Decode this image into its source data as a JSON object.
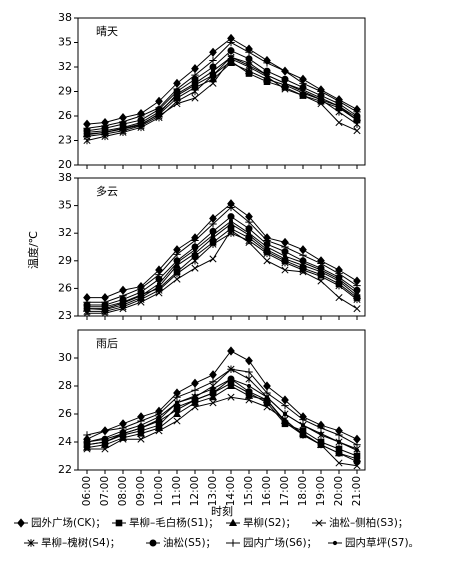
{
  "chart_data": [
    {
      "type": "line",
      "title": "晴天",
      "ylim": [
        20,
        38
      ],
      "yticks": [
        20,
        23,
        26,
        29,
        32,
        35,
        38
      ],
      "series": [
        {
          "name": "园外广场(CK)；",
          "color": "#000",
          "marker": "diamond",
          "values": [
            25,
            25.2,
            25.8,
            26.3,
            27.8,
            30,
            31.8,
            33.8,
            35.5,
            34.2,
            32.8,
            31.5,
            30.5,
            29.2,
            28,
            26.8
          ]
        },
        {
          "name": "旱柳–毛白杨(S1)；",
          "color": "#000",
          "marker": "square",
          "values": [
            24,
            24.2,
            24.6,
            25.2,
            26.5,
            28.5,
            29.8,
            31,
            32.7,
            31.2,
            30.2,
            29.5,
            28.5,
            27.8,
            27,
            25.5
          ]
        },
        {
          "name": "旱柳(S2)；",
          "color": "#000",
          "marker": "triangle",
          "values": [
            23.8,
            24,
            24.5,
            25,
            26.2,
            28.2,
            29.5,
            30.5,
            32.5,
            31.5,
            30.5,
            29.8,
            28.8,
            28,
            27.2,
            25.8
          ]
        },
        {
          "name": "油松–侧柏(S3)；",
          "color": "#000",
          "marker": "x",
          "values": [
            23.5,
            23.8,
            24.2,
            24.8,
            26,
            27.5,
            28.2,
            30,
            33,
            32,
            30.8,
            29.3,
            28.5,
            27.5,
            25.2,
            24.2
          ]
        },
        {
          "name": "旱柳–槐树(S4)；",
          "color": "#000",
          "marker": "asterisk",
          "values": [
            23,
            23.5,
            24,
            24.6,
            25.8,
            27.8,
            29,
            31,
            33.2,
            32.2,
            31,
            30,
            29,
            28,
            26.5,
            25
          ]
        },
        {
          "name": "油松(S5)；",
          "color": "#000",
          "marker": "circle",
          "values": [
            24.2,
            24.5,
            25,
            25.5,
            26.8,
            29,
            30.5,
            32,
            34,
            33,
            31.5,
            30.5,
            29.5,
            28.5,
            27.5,
            26
          ]
        },
        {
          "name": "园内广场(S6)；",
          "color": "#000",
          "marker": "plus",
          "values": [
            24.5,
            24.8,
            25.3,
            26,
            27,
            29.3,
            31,
            32.8,
            35,
            33.8,
            32.5,
            31.5,
            30,
            29,
            27.8,
            26.5
          ]
        },
        {
          "name": "园内草坪(S7)。",
          "color": "#000",
          "marker": "dot",
          "values": [
            23.7,
            24,
            24.4,
            24.9,
            26.3,
            28.7,
            30,
            31.5,
            33.2,
            32.5,
            31,
            30,
            29.2,
            28.2,
            27.2,
            25.5
          ]
        }
      ]
    },
    {
      "type": "line",
      "title": "多云",
      "y_label": "温度/℃",
      "ylim": [
        23,
        38
      ],
      "yticks": [
        23,
        26,
        29,
        32,
        35,
        38
      ],
      "series": [
        {
          "name": "园外广场(CK)；",
          "color": "#000",
          "marker": "diamond",
          "values": [
            25,
            25,
            25.8,
            26.2,
            28,
            30.2,
            31.5,
            33.6,
            35.2,
            33.8,
            31.5,
            31,
            30.2,
            29,
            28,
            26.8
          ]
        },
        {
          "name": "旱柳–毛白杨(S1)；",
          "color": "#000",
          "marker": "square",
          "values": [
            24,
            24,
            24.5,
            25.3,
            26,
            27.8,
            29.5,
            31,
            32.5,
            31.5,
            30,
            29,
            28.2,
            27.5,
            26.5,
            25
          ]
        },
        {
          "name": "旱柳(S2)；",
          "color": "#000",
          "marker": "triangle",
          "values": [
            23.8,
            23.7,
            24.2,
            25,
            26.2,
            28.5,
            29.8,
            31.5,
            33,
            31.8,
            30.2,
            29.2,
            28.5,
            27.8,
            26.8,
            25.2
          ]
        },
        {
          "name": "油松–侧柏(S3)；",
          "color": "#000",
          "marker": "x",
          "values": [
            23.3,
            23.3,
            23.8,
            24.5,
            25.5,
            27,
            28.2,
            29.2,
            32.3,
            31,
            29,
            28,
            27.8,
            26.8,
            25,
            23.8
          ]
        },
        {
          "name": "旱柳–槐树(S4)；",
          "color": "#000",
          "marker": "asterisk",
          "values": [
            23.5,
            23.5,
            24,
            24.8,
            25.8,
            27.6,
            29,
            30.8,
            32,
            31.2,
            29.8,
            28.8,
            28,
            27.3,
            26.3,
            24.8
          ]
        },
        {
          "name": "油松(S5)；",
          "color": "#000",
          "marker": "circle",
          "values": [
            24.2,
            24.2,
            24.8,
            25.6,
            27,
            29,
            30.5,
            32.2,
            33.8,
            32.5,
            30.8,
            30,
            29,
            28.2,
            27.2,
            25.8
          ]
        },
        {
          "name": "园内广场(S6)；",
          "color": "#000",
          "marker": "plus",
          "values": [
            24.5,
            24.5,
            25.2,
            26,
            27.5,
            29.7,
            31.2,
            33,
            34.8,
            33.2,
            31.2,
            30.5,
            29.6,
            28.7,
            27.6,
            26.3
          ]
        },
        {
          "name": "园内草坪(S7)。",
          "color": "#000",
          "marker": "dot",
          "values": [
            23.8,
            23.8,
            24.4,
            25.2,
            26.5,
            28.8,
            30.2,
            31.8,
            33.3,
            32,
            30.5,
            29.5,
            28.8,
            28,
            27,
            25.5
          ]
        }
      ]
    },
    {
      "type": "line",
      "title": "雨后",
      "x_label": "时刻",
      "ylim": [
        22,
        32
      ],
      "yticks": [
        22,
        24,
        26,
        28,
        30
      ],
      "categories": [
        "06:00",
        "07:00",
        "08:00",
        "09:00",
        "10:00",
        "11:00",
        "12:00",
        "13:00",
        "14:00",
        "15:00",
        "16:00",
        "17:00",
        "18:00",
        "19:00",
        "20:00",
        "21:00"
      ],
      "series": [
        {
          "name": "园外广场(CK)；",
          "color": "#000",
          "marker": "diamond",
          "values": [
            24.2,
            24.8,
            25.3,
            25.8,
            26.2,
            27.5,
            28.2,
            28.8,
            30.5,
            29.8,
            28,
            27,
            25.8,
            25.2,
            24.8,
            24.2
          ]
        },
        {
          "name": "旱柳–毛白杨(S1)；",
          "color": "#000",
          "marker": "square",
          "values": [
            23.8,
            24,
            24.5,
            24.8,
            25.2,
            26.5,
            27,
            27.5,
            28.2,
            27.5,
            26.8,
            25.3,
            24.8,
            24,
            23.5,
            23
          ]
        },
        {
          "name": "旱柳(S2)；",
          "color": "#000",
          "marker": "triangle",
          "values": [
            23.6,
            23.8,
            24.3,
            24.6,
            25,
            26,
            26.8,
            27.2,
            28,
            27.3,
            27,
            25.5,
            24.6,
            23.8,
            23.2,
            22.8
          ]
        },
        {
          "name": "油松–侧柏(S3)；",
          "color": "#000",
          "marker": "x",
          "values": [
            23.5,
            23.5,
            24.2,
            24.2,
            24.8,
            25.5,
            26.5,
            26.8,
            27.2,
            27,
            26.5,
            25.6,
            24.5,
            23.8,
            22.5,
            22.3
          ]
        },
        {
          "name": "旱柳–槐树(S4)；",
          "color": "#000",
          "marker": "asterisk",
          "values": [
            23.8,
            24,
            24.6,
            25,
            25.6,
            26.8,
            27.2,
            28,
            29.2,
            28.5,
            27.2,
            26,
            25.2,
            24.5,
            24,
            23.5
          ]
        },
        {
          "name": "油松(S5)；",
          "color": "#000",
          "marker": "circle",
          "values": [
            24,
            24.2,
            24.6,
            25,
            25.5,
            26.3,
            27,
            27.5,
            28.5,
            27.6,
            27,
            25.4,
            24.5,
            23.8,
            23.2,
            22.6
          ]
        },
        {
          "name": "园内广场(S6)；",
          "color": "#000",
          "marker": "plus",
          "values": [
            24.5,
            24.8,
            25,
            25.5,
            26,
            27.2,
            27.7,
            28.3,
            29.2,
            29,
            27.5,
            26.6,
            25.6,
            25,
            24.5,
            23.8
          ]
        },
        {
          "name": "园内草坪(S7)。",
          "color": "#000",
          "marker": "dot",
          "values": [
            24,
            24.3,
            24.8,
            25.2,
            25.8,
            26.8,
            27.3,
            27.8,
            28.5,
            28,
            27.2,
            26,
            25.2,
            24.6,
            24,
            23.4
          ]
        }
      ]
    }
  ]
}
